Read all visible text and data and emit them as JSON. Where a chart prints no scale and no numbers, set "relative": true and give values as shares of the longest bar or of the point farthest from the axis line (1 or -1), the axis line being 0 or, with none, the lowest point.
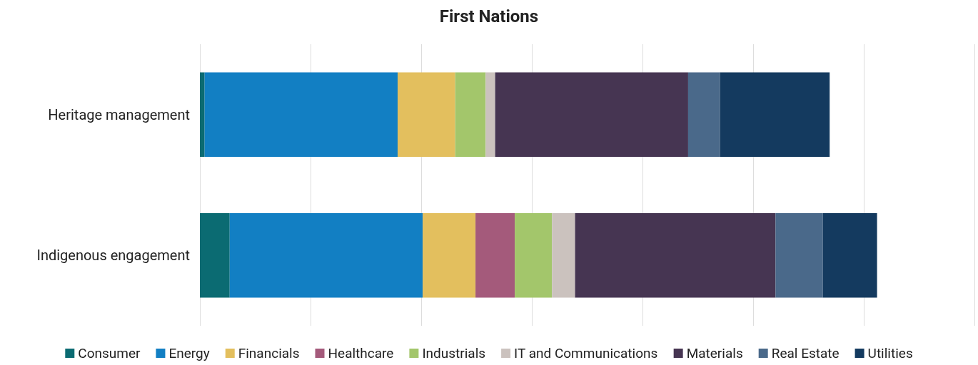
{
  "chart_data": {
    "type": "bar",
    "title": "First Nations",
    "orientation": "horizontal",
    "stacked": true,
    "relative": true,
    "grid": true,
    "legend": "bottom",
    "categories": [
      "Heritage management",
      "Indigenous engagement"
    ],
    "series": [
      {
        "name": "Consumer",
        "color": "#0b6b72",
        "values": [
          0.007,
          0.044
        ]
      },
      {
        "name": "Energy",
        "color": "#127fc3",
        "values": [
          0.285,
          0.285
        ]
      },
      {
        "name": "Financials",
        "color": "#e3bf5e",
        "values": [
          0.085,
          0.078
        ]
      },
      {
        "name": "Healthcare",
        "color": "#a45a7b",
        "values": [
          0,
          0.058
        ]
      },
      {
        "name": "Industrials",
        "color": "#a3c66b",
        "values": [
          0.045,
          0.055
        ]
      },
      {
        "name": "IT and Communications",
        "color": "#cbc2be",
        "values": [
          0.014,
          0.034
        ]
      },
      {
        "name": "Materials",
        "color": "#463552",
        "values": [
          0.285,
          0.296
        ]
      },
      {
        "name": "Real Estate",
        "color": "#4a698a",
        "values": [
          0.047,
          0.07
        ]
      },
      {
        "name": "Utilities",
        "color": "#143a5f",
        "values": [
          0.162,
          0.08
        ]
      }
    ]
  }
}
